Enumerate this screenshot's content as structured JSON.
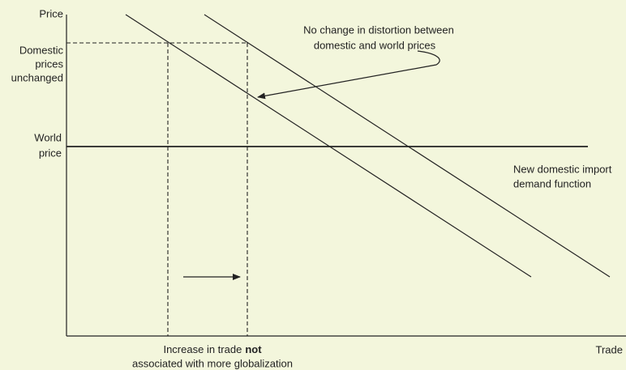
{
  "axes": {
    "y_label": "Price",
    "x_label": "Trade"
  },
  "labels": {
    "domestic_prices": [
      "Domestic",
      "prices",
      "unchanged"
    ],
    "world_price": [
      "World",
      "price"
    ],
    "distortion_note": [
      "No change in distortion between",
      "domestic and world prices"
    ],
    "demand_note": [
      "New domestic import",
      "demand function"
    ],
    "trade_note": {
      "line1": [
        "Increase in trade",
        "not"
      ],
      "line2": "associated with more globalization"
    }
  }
}
